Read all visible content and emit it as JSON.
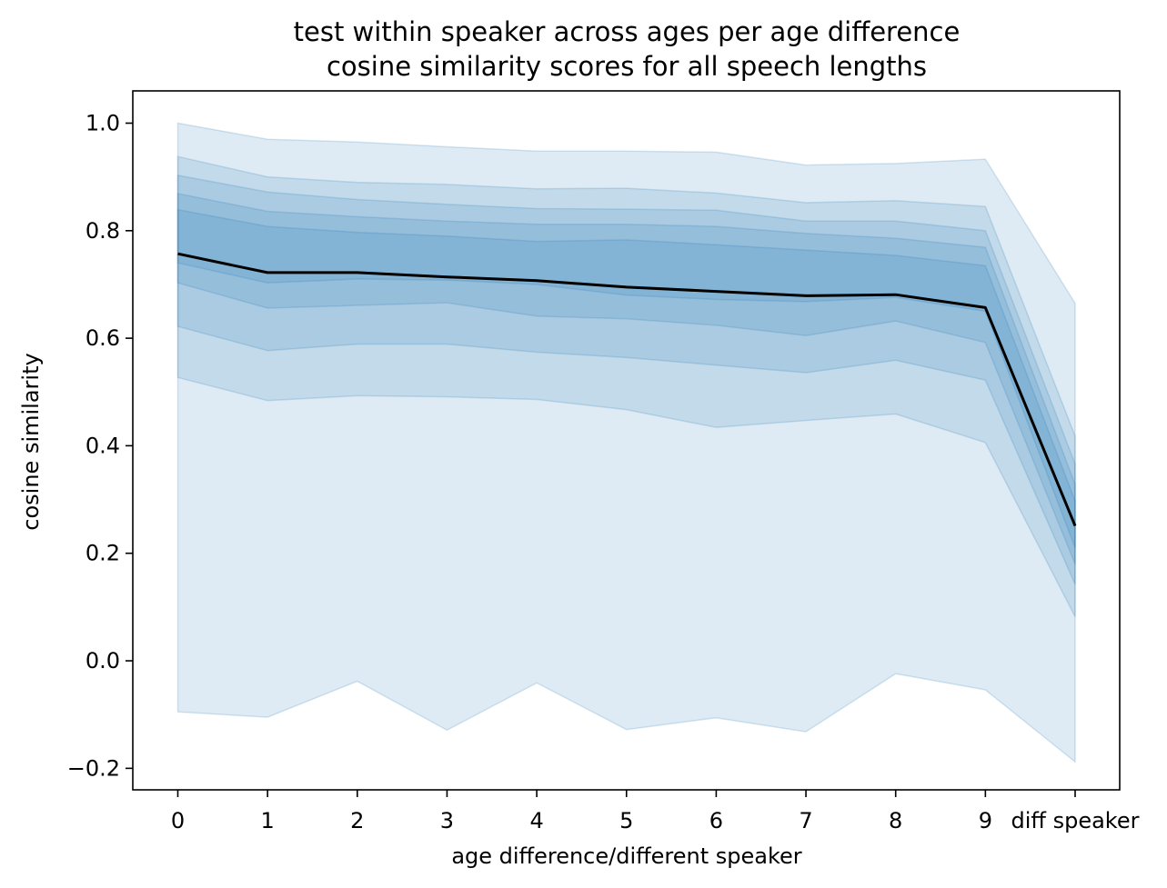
{
  "chart_data": {
    "type": "area",
    "title": "test within speaker across ages per age difference",
    "subtitle": "cosine similarity scores for all speech lengths",
    "xlabel": "age difference/different speaker",
    "ylabel": "cosine similarity",
    "categories": [
      "0",
      "1",
      "2",
      "3",
      "4",
      "5",
      "6",
      "7",
      "8",
      "9",
      "diff speaker"
    ],
    "ylim": [
      -0.24,
      1.06
    ],
    "yticks": [
      -0.2,
      0.0,
      0.2,
      0.4,
      0.6,
      0.8,
      1.0
    ],
    "ytick_labels": [
      "−0.2",
      "0.0",
      "0.2",
      "0.4",
      "0.6",
      "0.8",
      "1.0"
    ],
    "grid": false,
    "band_color": "#1f77b4",
    "line_color": "#000000",
    "bands": [
      {
        "lower": [
          -0.095,
          -0.105,
          -0.038,
          -0.129,
          -0.041,
          -0.128,
          -0.106,
          -0.132,
          -0.024,
          -0.054,
          -0.188
        ],
        "upper": [
          1.0,
          0.97,
          0.965,
          0.956,
          0.948,
          0.948,
          0.946,
          0.922,
          0.925,
          0.933,
          0.665
        ]
      },
      {
        "lower": [
          0.527,
          0.484,
          0.493,
          0.491,
          0.486,
          0.467,
          0.434,
          0.447,
          0.459,
          0.406,
          0.082
        ],
        "upper": [
          0.938,
          0.9,
          0.89,
          0.886,
          0.878,
          0.879,
          0.87,
          0.852,
          0.856,
          0.845,
          0.418
        ]
      },
      {
        "lower": [
          0.622,
          0.577,
          0.589,
          0.589,
          0.574,
          0.564,
          0.55,
          0.536,
          0.559,
          0.522,
          0.142
        ],
        "upper": [
          0.903,
          0.872,
          0.858,
          0.849,
          0.841,
          0.84,
          0.838,
          0.818,
          0.818,
          0.8,
          0.366
        ]
      },
      {
        "lower": [
          0.703,
          0.656,
          0.661,
          0.666,
          0.641,
          0.636,
          0.624,
          0.605,
          0.632,
          0.592,
          0.18
        ],
        "upper": [
          0.869,
          0.836,
          0.826,
          0.818,
          0.812,
          0.812,
          0.808,
          0.795,
          0.786,
          0.769,
          0.328
        ]
      },
      {
        "lower": [
          0.74,
          0.703,
          0.71,
          0.708,
          0.7,
          0.68,
          0.672,
          0.668,
          0.676,
          0.65,
          0.21
        ],
        "upper": [
          0.839,
          0.808,
          0.797,
          0.79,
          0.78,
          0.783,
          0.774,
          0.764,
          0.754,
          0.735,
          0.297
        ]
      }
    ],
    "series": [
      {
        "values": [
          0.757,
          0.722,
          0.722,
          0.714,
          0.707,
          0.695,
          0.687,
          0.679,
          0.681,
          0.657,
          0.251
        ]
      }
    ]
  }
}
